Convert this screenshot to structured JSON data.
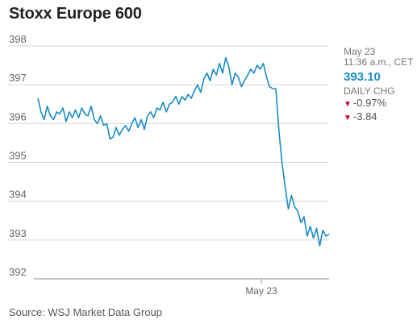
{
  "chart_data": {
    "type": "line",
    "title": "Stoxx Europe 600",
    "ylim": [
      392,
      398
    ],
    "y_ticks": [
      392,
      393,
      394,
      395,
      396,
      397,
      398
    ],
    "x_tick_labels": [
      "May 23"
    ],
    "grid": "horizontal",
    "line_color": "#1a8bc4",
    "series": [
      {
        "values": [
          396.65,
          396.3,
          396.1,
          396.45,
          396.2,
          396.1,
          396.3,
          396.25,
          396.4,
          396.05,
          396.3,
          396.15,
          396.35,
          396.15,
          396.4,
          396.25,
          396.2,
          396.45,
          396.1,
          396.0,
          396.2,
          395.95,
          396.0,
          395.6,
          395.65,
          395.9,
          395.7,
          395.85,
          395.95,
          395.8,
          396.0,
          396.15,
          395.9,
          396.1,
          395.85,
          396.2,
          396.3,
          396.15,
          396.4,
          396.35,
          396.55,
          396.3,
          396.5,
          396.55,
          396.7,
          396.5,
          396.7,
          396.6,
          396.75,
          396.65,
          396.85,
          397.0,
          396.8,
          397.15,
          397.3,
          397.1,
          397.4,
          397.25,
          397.55,
          397.3,
          397.7,
          397.45,
          397.0,
          397.3,
          397.2,
          396.95,
          397.1,
          397.25,
          397.4,
          397.3,
          397.5,
          397.4,
          397.55,
          397.2,
          396.95,
          396.9,
          396.9,
          395.8,
          394.95,
          394.35,
          393.8,
          394.15,
          393.85,
          393.75,
          393.45,
          393.6,
          393.1,
          393.35,
          393.05,
          393.3,
          392.85,
          393.25,
          393.1,
          393.15
        ]
      }
    ]
  },
  "info": {
    "date": "May 23",
    "time": "11:36 a.m., CET",
    "price": "393.10",
    "change_label": "DAILY CHG",
    "change_pct": "-0.97%",
    "change_abs": "-3.84",
    "down_color": "#d0021b"
  },
  "source": "Source: WSJ Market Data Group"
}
